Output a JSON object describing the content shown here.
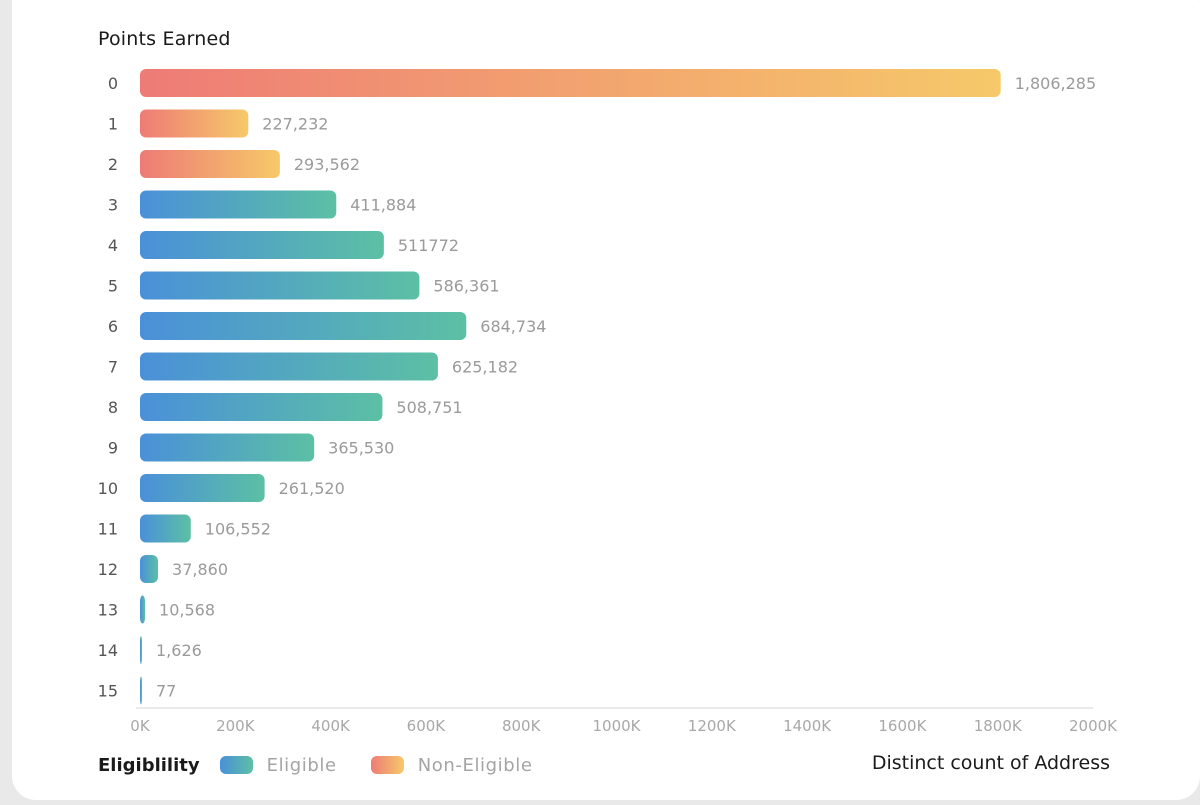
{
  "chart_data": {
    "type": "bar",
    "orientation": "horizontal",
    "title": "Points Earned",
    "xlabel": "Distinct count of Address",
    "ylabel": "Points Earned",
    "xlim": [
      0,
      2000000
    ],
    "x_ticks": [
      "0K",
      "200K",
      "400K",
      "600K",
      "800K",
      "1000K",
      "1200K",
      "1400K",
      "1600K",
      "1800K",
      "2000K"
    ],
    "categories": [
      "0",
      "1",
      "2",
      "3",
      "4",
      "5",
      "6",
      "7",
      "8",
      "9",
      "10",
      "11",
      "12",
      "13",
      "14",
      "15"
    ],
    "values": [
      1806285,
      227232,
      293562,
      411884,
      511772,
      586361,
      684734,
      625182,
      508751,
      365530,
      261520,
      106552,
      37860,
      10568,
      1626,
      77
    ],
    "value_labels": [
      "1,806,285",
      "227,232",
      "293,562",
      "411,884",
      "511772",
      "586,361",
      "684,734",
      "625,182",
      "508,751",
      "365,530",
      "261,520",
      "106,552",
      "37,860",
      "10,568",
      "1,626",
      "77"
    ],
    "eligibility": [
      "Non-Eligible",
      "Non-Eligible",
      "Non-Eligible",
      "Eligible",
      "Eligible",
      "Eligible",
      "Eligible",
      "Eligible",
      "Eligible",
      "Eligible",
      "Eligible",
      "Eligible",
      "Eligible",
      "Eligible",
      "Eligible",
      "Eligible"
    ],
    "legend": {
      "title": "Eligiblility",
      "entries": [
        "Eligible",
        "Non-Eligible"
      ]
    },
    "colors": {
      "eligible_start": "#4a90d9",
      "eligible_end": "#5cc0a4",
      "non_eligible_start": "#ee7b76",
      "non_eligible_end": "#f6c969"
    }
  }
}
